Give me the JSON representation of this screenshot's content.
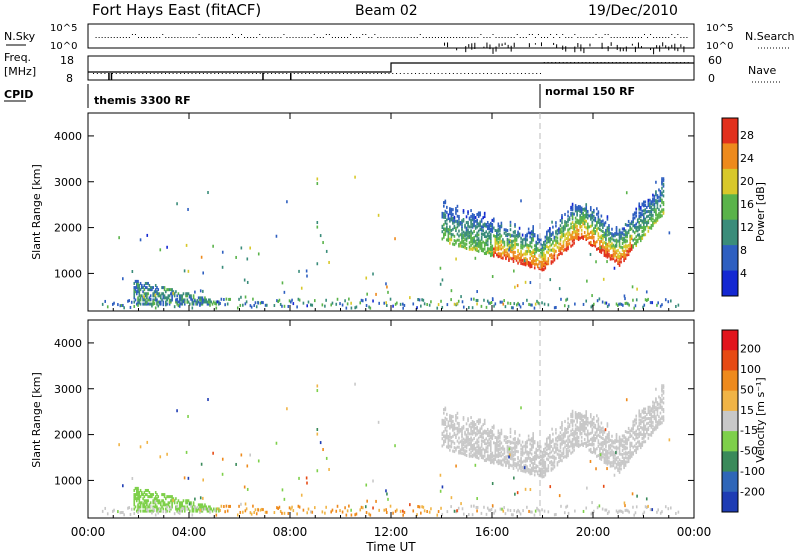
{
  "header": {
    "title": "Fort Hays East (fitACF)",
    "beam": "Beam 02",
    "date": "19/Dec/2010"
  },
  "top_panels": {
    "nsky_label": "N.Sky",
    "nsky_ticks": [
      "10^5",
      "10^0"
    ],
    "nsearch_label": "N.Search",
    "nsearch_ticks": [
      "10^5",
      "10^0"
    ],
    "freq_label_line1": "Freq.",
    "freq_label_line2": "[MHz]",
    "freq_ticks": [
      "18",
      "8"
    ],
    "nave_label": "Nave",
    "nave_ticks": [
      "60",
      "0"
    ],
    "cpid_label": "CPID",
    "cpid_segments": [
      "themis 3300 RF",
      "normal 150 RF"
    ]
  },
  "chart_data": [
    {
      "type": "heatmap",
      "name": "power-panel",
      "ylabel": "Slant Range [km]",
      "yticks": [
        "1000",
        "2000",
        "3000",
        "4000"
      ],
      "ylim": [
        180,
        4500
      ],
      "xlim": [
        0,
        24
      ],
      "colorbar": {
        "label": "Power [dB]",
        "ticks": [
          "4",
          "8",
          "12",
          "16",
          "20",
          "24",
          "28"
        ],
        "range": [
          0,
          31
        ],
        "colors": [
          "#1428d2",
          "#2e5fc0",
          "#3a8c7a",
          "#5ab34a",
          "#d8c82a",
          "#ee8a1c",
          "#e2301c"
        ]
      },
      "features": [
        {
          "hours": [
            14.0,
            22.8
          ],
          "range_km": [
            1000,
            2500
          ],
          "note": "main echo band"
        },
        {
          "hours": [
            1.8,
            5.2
          ],
          "range_km": [
            300,
            850
          ],
          "note": "early near-range echoes"
        },
        {
          "hours": [
            0,
            24
          ],
          "range_km": [
            200,
            450
          ],
          "note": "ground scatter floor"
        }
      ]
    },
    {
      "type": "heatmap",
      "name": "velocity-panel",
      "ylabel": "Slant Range [km]",
      "yticks": [
        "1000",
        "2000",
        "3000",
        "4000"
      ],
      "ylim": [
        180,
        4500
      ],
      "xlim": [
        0,
        24
      ],
      "colorbar": {
        "label": "Velocity [m s⁻¹]",
        "ticks": [
          "200",
          "100",
          "50",
          "15",
          "-15",
          "-50",
          "-100",
          "-200"
        ],
        "range": [
          -250,
          250
        ],
        "colors": [
          "#1e3cb4",
          "#2f66b8",
          "#3a8a5a",
          "#7ed04a",
          "#c8c8c8",
          "#f0b446",
          "#ee8a1c",
          "#e64a14",
          "#e2141c"
        ]
      }
    }
  ],
  "x_axis": {
    "label": "Time UT",
    "ticks": [
      "00:00",
      "04:00",
      "08:00",
      "12:00",
      "16:00",
      "20:00",
      "00:00"
    ]
  }
}
